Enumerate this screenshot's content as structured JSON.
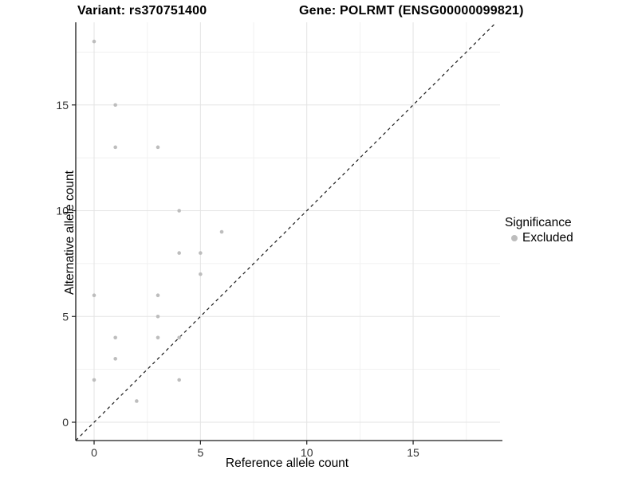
{
  "titles": {
    "variant": "Variant: rs370751400",
    "gene": "Gene: POLRMT (ENSG00000099821)"
  },
  "legend": {
    "title": "Significance",
    "items": [
      {
        "label": "Excluded",
        "color": "#bdbdbd"
      }
    ]
  },
  "chart_data": {
    "type": "scatter",
    "title": "Variant: rs370751400 — Gene: POLRMT (ENSG00000099821)",
    "xlabel": "Reference allele count",
    "ylabel": "Alternative allele count",
    "xlim": [
      -0.87,
      18.97
    ],
    "ylim": [
      -0.87,
      18.97
    ],
    "xticks": [
      0,
      5,
      10,
      15
    ],
    "yticks": [
      0,
      5,
      10,
      15
    ],
    "minor_ticks": [
      2.5,
      7.5,
      12.5,
      17.5
    ],
    "grid": "major+minor",
    "legend_position": "right",
    "series": [
      {
        "name": "Excluded",
        "color": "#bdbdbd",
        "points": [
          [
            0,
            18
          ],
          [
            1,
            15
          ],
          [
            1,
            13
          ],
          [
            3,
            13
          ],
          [
            4,
            10
          ],
          [
            6,
            9
          ],
          [
            4,
            8
          ],
          [
            5,
            8
          ],
          [
            5,
            7
          ],
          [
            0,
            6
          ],
          [
            3,
            6
          ],
          [
            3,
            5
          ],
          [
            1,
            4
          ],
          [
            3,
            4
          ],
          [
            4,
            4
          ],
          [
            1,
            3
          ],
          [
            0,
            2
          ],
          [
            4,
            2
          ],
          [
            2,
            1
          ]
        ]
      }
    ],
    "reference_line": {
      "equation": "y = x",
      "style": "dashed",
      "color": "#1a1a1a"
    },
    "colors": {
      "point": "#bdbdbd",
      "grid_major": "#e3e3e3",
      "grid_minor": "#f1f1f1",
      "axis_line": "#1a1a1a",
      "tick_label": "#333333"
    }
  }
}
